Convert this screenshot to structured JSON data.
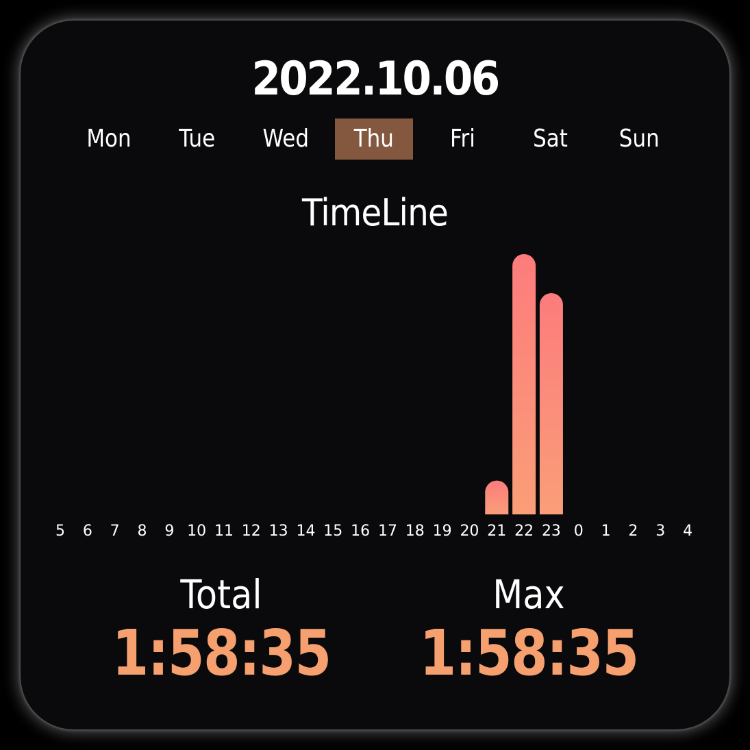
{
  "date": "2022.10.06",
  "weekdays": [
    {
      "label": "Mon",
      "selected": false
    },
    {
      "label": "Tue",
      "selected": false
    },
    {
      "label": "Wed",
      "selected": false
    },
    {
      "label": "Thu",
      "selected": true
    },
    {
      "label": "Fri",
      "selected": false
    },
    {
      "label": "Sat",
      "selected": false
    },
    {
      "label": "Sun",
      "selected": false
    }
  ],
  "timeline_title": "TimeLine",
  "colors": {
    "background": "#0a0a0c",
    "selected_day": "#84573f",
    "accent": "#f5a06e",
    "bar_top": "#fc7c7c",
    "bar_bottom": "#fa9e78"
  },
  "stats": {
    "total_label": "Total",
    "total_value": "1:58:35",
    "max_label": "Max",
    "max_value": "1:58:35"
  },
  "chart_data": {
    "type": "bar",
    "categories": [
      "5",
      "6",
      "7",
      "8",
      "9",
      "10",
      "11",
      "12",
      "13",
      "14",
      "15",
      "16",
      "17",
      "18",
      "19",
      "20",
      "21",
      "22",
      "23",
      "0",
      "1",
      "2",
      "3",
      "4"
    ],
    "values": [
      0,
      0,
      0,
      0,
      0,
      0,
      0,
      0,
      0,
      0,
      0,
      0,
      0,
      0,
      0,
      0,
      0.13,
      1.0,
      0.85,
      0,
      0,
      0,
      0,
      0
    ],
    "title": "TimeLine",
    "xlabel": "",
    "ylabel": "",
    "ylim": [
      0,
      1
    ],
    "grid": false
  }
}
